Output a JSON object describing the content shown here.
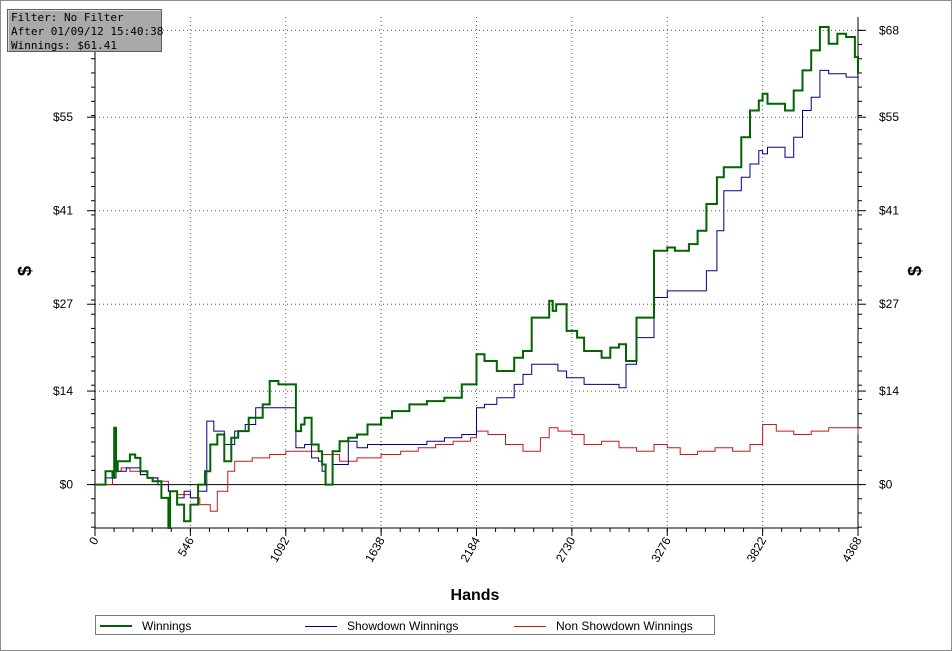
{
  "info": {
    "filter": "Filter: No Filter",
    "after": "After 01/09/12 15:40:38",
    "winnings": "Winnings: $61.41"
  },
  "chart_data": {
    "type": "line",
    "xlabel": "Hands",
    "ylabel": "$",
    "ylabel_right": "$",
    "xlim": [
      0,
      4368
    ],
    "ylim": [
      -6.5,
      70
    ],
    "x_ticks": [
      0,
      546,
      1092,
      1638,
      2184,
      2730,
      3276,
      3822,
      4368
    ],
    "x_tick_labels": [
      "0",
      "546",
      "1092",
      "1638",
      "2184",
      "2730",
      "3276",
      "3822",
      "4368"
    ],
    "y_ticks": [
      0,
      14,
      27,
      41,
      55,
      68
    ],
    "y_tick_labels": [
      "$0",
      "$14",
      "$27",
      "$41",
      "$55",
      "$68"
    ],
    "grid": true,
    "legend_position": "bottom",
    "series": [
      {
        "name": "Winnings",
        "color": "#006400",
        "x": [
          0,
          60,
          100,
          110,
          120,
          130,
          200,
          230,
          260,
          300,
          330,
          380,
          420,
          430,
          470,
          510,
          546,
          590,
          630,
          660,
          700,
          740,
          780,
          820,
          880,
          960,
          1000,
          1050,
          1092,
          1150,
          1180,
          1200,
          1240,
          1280,
          1300,
          1320,
          1360,
          1400,
          1450,
          1500,
          1560,
          1638,
          1700,
          1800,
          1900,
          2000,
          2100,
          2184,
          2230,
          2300,
          2400,
          2450,
          2500,
          2600,
          2620,
          2640,
          2700,
          2760,
          2800,
          2900,
          2950,
          3000,
          3040,
          3100,
          3200,
          3276,
          3320,
          3400,
          3450,
          3500,
          3560,
          3600,
          3700,
          3750,
          3800,
          3822,
          3850,
          3950,
          4000,
          4050,
          4100,
          4150,
          4200,
          4250,
          4300,
          4350,
          4368
        ],
        "values": [
          0.0,
          2.0,
          1.0,
          8.5,
          2.0,
          3.5,
          4.5,
          4.0,
          2.0,
          1.0,
          0.5,
          -2.0,
          -6.5,
          -1.0,
          -3.0,
          -5.5,
          -3.0,
          0.0,
          2.0,
          6.0,
          7.5,
          3.5,
          7.0,
          8.0,
          10.0,
          12.0,
          15.5,
          15.0,
          15.0,
          8.0,
          9.0,
          10.0,
          6.0,
          5.0,
          3.0,
          0.0,
          5.0,
          6.5,
          7.0,
          7.5,
          9.0,
          10.0,
          11.0,
          12.0,
          12.5,
          13.0,
          15.0,
          19.5,
          18.5,
          17.0,
          19.0,
          20.0,
          25.0,
          27.5,
          26.0,
          27.0,
          23.0,
          22.0,
          20.0,
          19.0,
          20.5,
          21.0,
          18.5,
          25.0,
          35.0,
          35.5,
          35.0,
          36.0,
          38.0,
          42.0,
          46.0,
          47.5,
          52.0,
          56.0,
          57.5,
          58.5,
          57.0,
          56.0,
          59.0,
          62.0,
          65.0,
          68.5,
          66.0,
          67.5,
          67.0,
          64.0,
          61.5
        ]
      },
      {
        "name": "Showdown Winnings",
        "color": "#00008b",
        "x": [
          0,
          60,
          120,
          180,
          260,
          300,
          360,
          420,
          470,
          510,
          546,
          590,
          640,
          680,
          740,
          800,
          860,
          920,
          980,
          1040,
          1092,
          1150,
          1200,
          1240,
          1280,
          1300,
          1320,
          1360,
          1450,
          1500,
          1560,
          1638,
          1700,
          1800,
          1900,
          2000,
          2100,
          2184,
          2230,
          2300,
          2400,
          2450,
          2500,
          2600,
          2650,
          2700,
          2800,
          2900,
          3000,
          3040,
          3100,
          3200,
          3276,
          3320,
          3400,
          3500,
          3560,
          3600,
          3700,
          3750,
          3800,
          3822,
          3850,
          3950,
          4000,
          4050,
          4100,
          4150,
          4200,
          4250,
          4300,
          4368
        ],
        "values": [
          0.0,
          1.0,
          2.0,
          2.5,
          1.5,
          1.0,
          0.0,
          -1.0,
          -2.0,
          -1.0,
          -2.0,
          -1.0,
          9.5,
          8.0,
          6.0,
          8.0,
          9.0,
          11.5,
          11.5,
          11.5,
          11.5,
          5.5,
          6.0,
          4.0,
          3.5,
          2.0,
          0.0,
          3.0,
          6.5,
          5.5,
          6.0,
          6.0,
          6.0,
          6.0,
          6.5,
          7.0,
          7.5,
          11.5,
          12.0,
          13.0,
          15.0,
          16.5,
          18.0,
          18.0,
          17.0,
          16.0,
          15.0,
          15.0,
          14.5,
          18.0,
          22.0,
          28.0,
          29.0,
          29.0,
          29.0,
          32.0,
          38.0,
          44.0,
          46.0,
          48.0,
          50.0,
          49.5,
          50.5,
          49.0,
          52.0,
          56.0,
          58.0,
          62.0,
          61.5,
          61.5,
          61.0,
          61.0
        ]
      },
      {
        "name": "Non Showdown Winnings",
        "color": "#c81919",
        "x": [
          0,
          100,
          150,
          200,
          260,
          300,
          360,
          420,
          470,
          546,
          600,
          660,
          700,
          760,
          800,
          900,
          1000,
          1092,
          1200,
          1300,
          1400,
          1500,
          1638,
          1750,
          1850,
          1950,
          2050,
          2150,
          2184,
          2250,
          2350,
          2450,
          2550,
          2600,
          2650,
          2730,
          2800,
          2900,
          3000,
          3100,
          3200,
          3276,
          3350,
          3450,
          3550,
          3650,
          3750,
          3822,
          3900,
          4000,
          4100,
          4200,
          4300,
          4368
        ],
        "values": [
          0.0,
          2.0,
          2.5,
          2.0,
          1.5,
          1.0,
          0.5,
          -1.0,
          -1.5,
          -2.0,
          -3.0,
          -4.0,
          -1.0,
          2.0,
          3.5,
          4.0,
          4.5,
          5.0,
          5.0,
          4.5,
          3.5,
          4.0,
          4.5,
          5.0,
          5.5,
          6.0,
          6.5,
          7.0,
          8.0,
          7.5,
          6.0,
          5.0,
          7.0,
          8.5,
          8.0,
          7.5,
          6.0,
          6.5,
          5.5,
          5.0,
          6.0,
          5.5,
          4.5,
          5.0,
          5.5,
          5.0,
          6.0,
          9.0,
          8.0,
          7.5,
          8.0,
          8.5,
          8.5,
          7.5
        ]
      }
    ]
  }
}
